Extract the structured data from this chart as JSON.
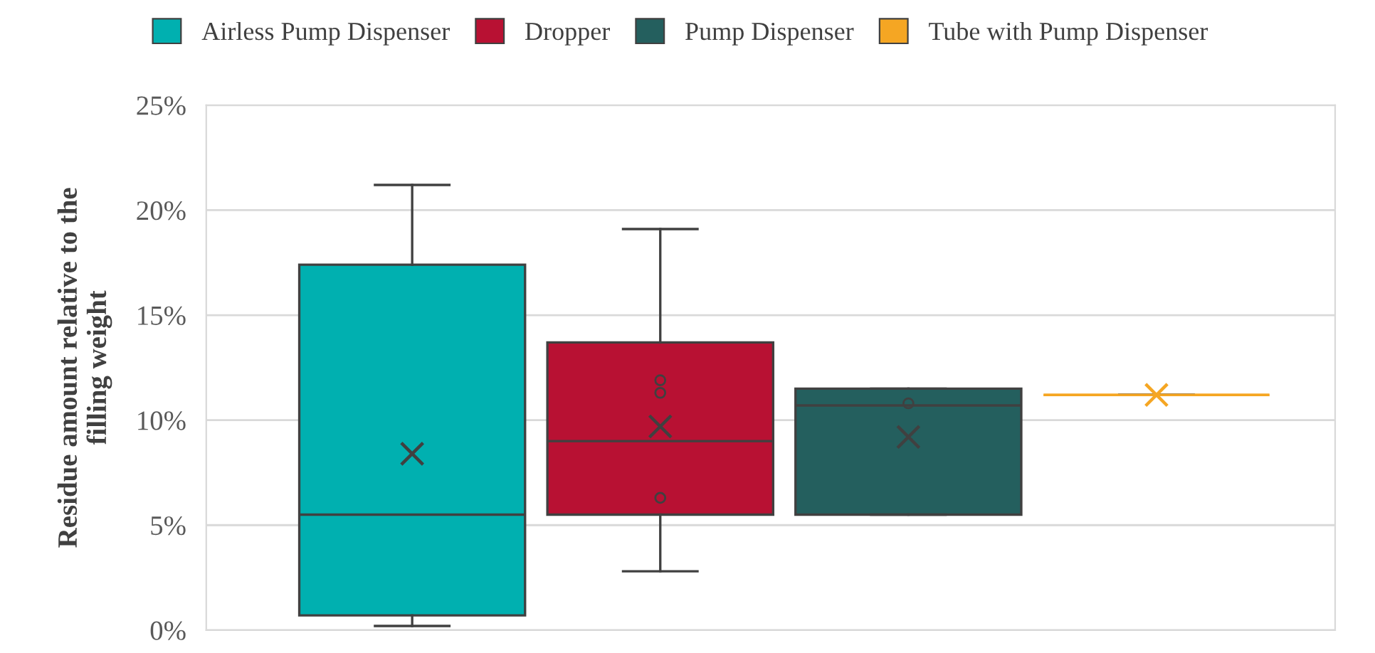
{
  "chart_data": {
    "type": "box",
    "ylabel": "Residue amount relative to the\nfilling weight",
    "categories": [
      null
    ],
    "series": [
      {
        "name": "Airless Pump Dispenser",
        "color": "#00b0b0",
        "boxes": [
          {
            "low": 0.2,
            "q1": 0.7,
            "median": 5.5,
            "q3": 17.4,
            "high": 21.2,
            "mean": 8.4
          }
        ]
      },
      {
        "name": "Dropper",
        "color": "#b81133",
        "boxes": [
          {
            "low": 2.8,
            "q1": 5.5,
            "median": 9.0,
            "q3": 13.7,
            "high": 19.1,
            "mean": 9.7,
            "outliers": [
              11.9,
              11.3,
              6.3
            ]
          }
        ]
      },
      {
        "name": "Pump Dispenser",
        "color": "#245f5e",
        "boxes": [
          {
            "low": 5.5,
            "q1": 5.5,
            "median": 10.7,
            "q3": 11.5,
            "high": 11.5,
            "mean": 9.2,
            "outliers": [
              10.8
            ]
          }
        ]
      },
      {
        "name": "Tube with Pump Dispenser",
        "color": "#f5a623",
        "boxes": [
          {
            "low": 11.2,
            "q1": 11.2,
            "median": 11.2,
            "q3": 11.2,
            "high": 11.2,
            "mean": 11.2
          }
        ]
      }
    ],
    "ylim": [
      0,
      25
    ],
    "yticks": [
      {
        "value": 0,
        "label": "0%"
      },
      {
        "value": 5,
        "label": "5%"
      },
      {
        "value": 10,
        "label": "10%"
      },
      {
        "value": 15,
        "label": "15%"
      },
      {
        "value": 20,
        "label": "20%"
      },
      {
        "value": 25,
        "label": "25%"
      }
    ],
    "grid": "y",
    "legend": "top",
    "marker": "circle"
  }
}
